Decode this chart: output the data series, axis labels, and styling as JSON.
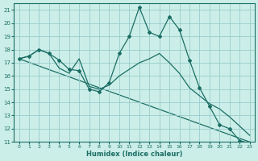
{
  "xlabel": "Humidex (Indice chaleur)",
  "xlim": [
    -0.5,
    23.5
  ],
  "ylim": [
    11,
    21.5
  ],
  "yticks": [
    11,
    12,
    13,
    14,
    15,
    16,
    17,
    18,
    19,
    20,
    21
  ],
  "xticks": [
    0,
    1,
    2,
    3,
    4,
    5,
    6,
    7,
    8,
    9,
    10,
    11,
    12,
    13,
    14,
    15,
    16,
    17,
    18,
    19,
    20,
    21,
    22,
    23
  ],
  "bg_color": "#cceee8",
  "grid_color": "#99cccc",
  "line_color": "#1a6e64",
  "line1_x": [
    0,
    1,
    2,
    3,
    4,
    5,
    6,
    7,
    8,
    9,
    10,
    11,
    12,
    13,
    14,
    15,
    16,
    17,
    18,
    19,
    20,
    21,
    22,
    23
  ],
  "line1_y": [
    17.3,
    17.5,
    18.0,
    17.7,
    17.2,
    16.5,
    16.4,
    15.0,
    14.8,
    15.5,
    17.7,
    19.0,
    21.2,
    19.3,
    19.0,
    20.5,
    19.5,
    17.2,
    15.1,
    13.7,
    12.3,
    12.0,
    11.1,
    10.9
  ],
  "line2_x": [
    0,
    23
  ],
  "line2_y": [
    17.3,
    11.0
  ],
  "line3_x": [
    0,
    1,
    2,
    3,
    4,
    5,
    6,
    7,
    8,
    9,
    10,
    11,
    12,
    13,
    14,
    15,
    16,
    17,
    18,
    19,
    20,
    21,
    22,
    23
  ],
  "line3_y": [
    17.3,
    17.5,
    18.0,
    17.7,
    16.6,
    16.2,
    17.3,
    15.2,
    15.0,
    15.3,
    16.0,
    16.5,
    17.0,
    17.3,
    17.7,
    17.0,
    16.2,
    15.1,
    14.5,
    13.9,
    13.5,
    12.9,
    12.2,
    11.5
  ]
}
